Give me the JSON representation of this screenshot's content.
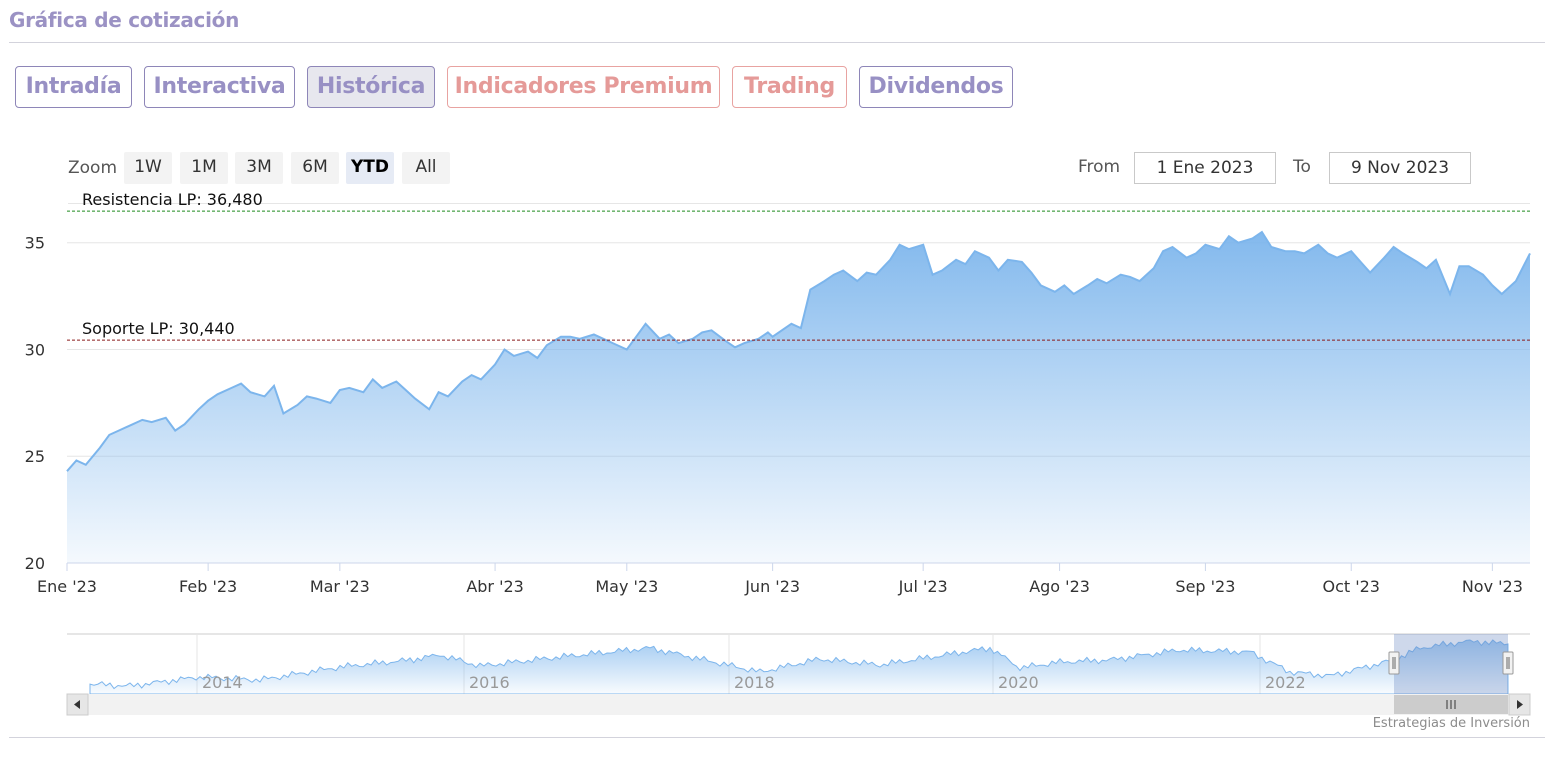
{
  "header": {
    "title": "Gráfica de cotización"
  },
  "tabs": [
    {
      "label": "Intradía",
      "style": "purple"
    },
    {
      "label": "Interactiva",
      "style": "purple"
    },
    {
      "label": "Histórica",
      "style": "purple",
      "active": true
    },
    {
      "label": "Indicadores Premium",
      "style": "red"
    },
    {
      "label": "Trading",
      "style": "red"
    },
    {
      "label": "Dividendos",
      "style": "purple"
    }
  ],
  "range_selector": {
    "zoom_label": "Zoom",
    "buttons": [
      "1W",
      "1M",
      "3M",
      "6M",
      "YTD",
      "All"
    ],
    "selected": "YTD",
    "from_label": "From",
    "from_value": "1 Ene 2023",
    "to_label": "To",
    "to_value": "9 Nov 2023"
  },
  "credits": "Estrategias de Inversión",
  "colors": {
    "series": "#7cb5ec",
    "resistance": "#1e8a1e",
    "support": "#8b1a1a",
    "navigator_mask": "#c0cdea",
    "tab_purple": "#9890c4",
    "tab_red": "#e59a98"
  },
  "chart_data": {
    "type": "area",
    "title": "",
    "xlabel": "",
    "ylabel": "",
    "ylim": [
      20,
      37
    ],
    "yticks": [
      20,
      25,
      30,
      35
    ],
    "xlim": [
      "2023-01-02",
      "2023-11-09"
    ],
    "xticks": [
      {
        "label": "Ene '23",
        "date": "2023-01-02"
      },
      {
        "label": "Feb '23",
        "date": "2023-02-01"
      },
      {
        "label": "Mar '23",
        "date": "2023-03-01"
      },
      {
        "label": "Abr '23",
        "date": "2023-04-03"
      },
      {
        "label": "May '23",
        "date": "2023-05-01"
      },
      {
        "label": "Jun '23",
        "date": "2023-06-01"
      },
      {
        "label": "Jul '23",
        "date": "2023-07-03"
      },
      {
        "label": "Ago '23",
        "date": "2023-08-01"
      },
      {
        "label": "Sep '23",
        "date": "2023-09-01"
      },
      {
        "label": "Oct '23",
        "date": "2023-10-02"
      },
      {
        "label": "Nov '23",
        "date": "2023-11-01"
      }
    ],
    "grid": true,
    "plot_lines": [
      {
        "label": "Resistencia LP: 36,480",
        "value": 36.48
      },
      {
        "label": "Soporte LP: 30,440",
        "value": 30.44
      }
    ],
    "series": [
      {
        "x": [
          "2023-01-02",
          "2023-01-04",
          "2023-01-06",
          "2023-01-09",
          "2023-01-11",
          "2023-01-13",
          "2023-01-16",
          "2023-01-18",
          "2023-01-20",
          "2023-01-23",
          "2023-01-25",
          "2023-01-27",
          "2023-01-30",
          "2023-02-01",
          "2023-02-03",
          "2023-02-06",
          "2023-02-08",
          "2023-02-10",
          "2023-02-13",
          "2023-02-15",
          "2023-02-17",
          "2023-02-20",
          "2023-02-22",
          "2023-02-24",
          "2023-02-27",
          "2023-03-01",
          "2023-03-03",
          "2023-03-06",
          "2023-03-08",
          "2023-03-10",
          "2023-03-13",
          "2023-03-15",
          "2023-03-17",
          "2023-03-20",
          "2023-03-22",
          "2023-03-24",
          "2023-03-27",
          "2023-03-29",
          "2023-03-31",
          "2023-04-03",
          "2023-04-05",
          "2023-04-07",
          "2023-04-10",
          "2023-04-12",
          "2023-04-14",
          "2023-04-17",
          "2023-04-19",
          "2023-04-21",
          "2023-04-24",
          "2023-04-26",
          "2023-04-28",
          "2023-05-01",
          "2023-05-03",
          "2023-05-05",
          "2023-05-08",
          "2023-05-10",
          "2023-05-12",
          "2023-05-15",
          "2023-05-17",
          "2023-05-19",
          "2023-05-22",
          "2023-05-24",
          "2023-05-26",
          "2023-05-29",
          "2023-05-31",
          "2023-06-01",
          "2023-06-05",
          "2023-06-07",
          "2023-06-09",
          "2023-06-12",
          "2023-06-14",
          "2023-06-16",
          "2023-06-19",
          "2023-06-21",
          "2023-06-23",
          "2023-06-26",
          "2023-06-28",
          "2023-06-30",
          "2023-07-03",
          "2023-07-05",
          "2023-07-07",
          "2023-07-10",
          "2023-07-12",
          "2023-07-14",
          "2023-07-17",
          "2023-07-19",
          "2023-07-21",
          "2023-07-24",
          "2023-07-26",
          "2023-07-28",
          "2023-07-31",
          "2023-08-02",
          "2023-08-04",
          "2023-08-07",
          "2023-08-09",
          "2023-08-11",
          "2023-08-14",
          "2023-08-16",
          "2023-08-18",
          "2023-08-21",
          "2023-08-23",
          "2023-08-25",
          "2023-08-28",
          "2023-08-30",
          "2023-09-01",
          "2023-09-04",
          "2023-09-06",
          "2023-09-08",
          "2023-09-11",
          "2023-09-13",
          "2023-09-15",
          "2023-09-18",
          "2023-09-20",
          "2023-09-22",
          "2023-09-25",
          "2023-09-27",
          "2023-09-29",
          "2023-10-02",
          "2023-10-04",
          "2023-10-06",
          "2023-10-09",
          "2023-10-11",
          "2023-10-13",
          "2023-10-16",
          "2023-10-18",
          "2023-10-20",
          "2023-10-23",
          "2023-10-25",
          "2023-10-27",
          "2023-10-30",
          "2023-11-01",
          "2023-11-03",
          "2023-11-06",
          "2023-11-09"
        ],
        "values": [
          24.3,
          24.8,
          24.6,
          25.4,
          26.0,
          26.2,
          26.5,
          26.7,
          26.6,
          26.8,
          26.2,
          26.5,
          27.2,
          27.6,
          27.9,
          28.2,
          28.4,
          28.0,
          27.8,
          28.3,
          27.0,
          27.4,
          27.8,
          27.7,
          27.5,
          28.1,
          28.2,
          28.0,
          28.6,
          28.2,
          28.5,
          28.1,
          27.7,
          27.2,
          28.0,
          27.8,
          28.5,
          28.8,
          28.6,
          29.3,
          30.0,
          29.7,
          29.9,
          29.6,
          30.2,
          30.6,
          30.6,
          30.5,
          30.7,
          30.5,
          30.3,
          30.0,
          30.6,
          31.2,
          30.5,
          30.7,
          30.3,
          30.5,
          30.8,
          30.9,
          30.4,
          30.1,
          30.3,
          30.5,
          30.8,
          30.6,
          31.2,
          31.0,
          32.8,
          33.2,
          33.5,
          33.7,
          33.2,
          33.6,
          33.5,
          34.2,
          34.9,
          34.7,
          34.9,
          33.5,
          33.7,
          34.2,
          34.0,
          34.6,
          34.3,
          33.7,
          34.2,
          34.1,
          33.6,
          33.0,
          32.7,
          33.0,
          32.6,
          33.0,
          33.3,
          33.1,
          33.5,
          33.4,
          33.2,
          33.8,
          34.6,
          34.8,
          34.3,
          34.5,
          34.9,
          34.7,
          35.3,
          35.0,
          35.2,
          35.5,
          34.8,
          34.6,
          34.6,
          34.5,
          34.9,
          34.5,
          34.3,
          34.6,
          34.1,
          33.6,
          34.3,
          34.8,
          34.5,
          34.1,
          33.8,
          34.2,
          32.6,
          33.9,
          33.9,
          33.5,
          33.0,
          32.6,
          33.2,
          34.5
        ]
      }
    ],
    "navigator": {
      "xticks": [
        "2014",
        "2016",
        "2018",
        "2020",
        "2022"
      ]
    }
  }
}
